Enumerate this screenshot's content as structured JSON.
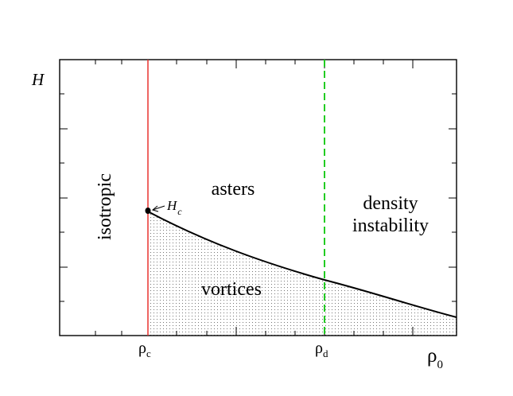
{
  "diagram": {
    "axes": {
      "ylabel": "H",
      "xlabel": "ρ",
      "xlabel_sub": "0"
    },
    "ticks": {
      "rho_c": {
        "base": "ρ",
        "sub": "c"
      },
      "rho_d": {
        "base": "ρ",
        "sub": "d"
      }
    },
    "regions": {
      "isotropic": "isotropic",
      "asters": "asters",
      "density_line1": "density",
      "density_line2": "instability",
      "vortices": "vortices"
    },
    "critical_point": {
      "label": "H",
      "label_sub": "c"
    },
    "colors": {
      "rho_c_line": "#e8322f",
      "rho_d_line": "#22cc22",
      "curve": "#000000",
      "stipple": "#555555"
    }
  }
}
